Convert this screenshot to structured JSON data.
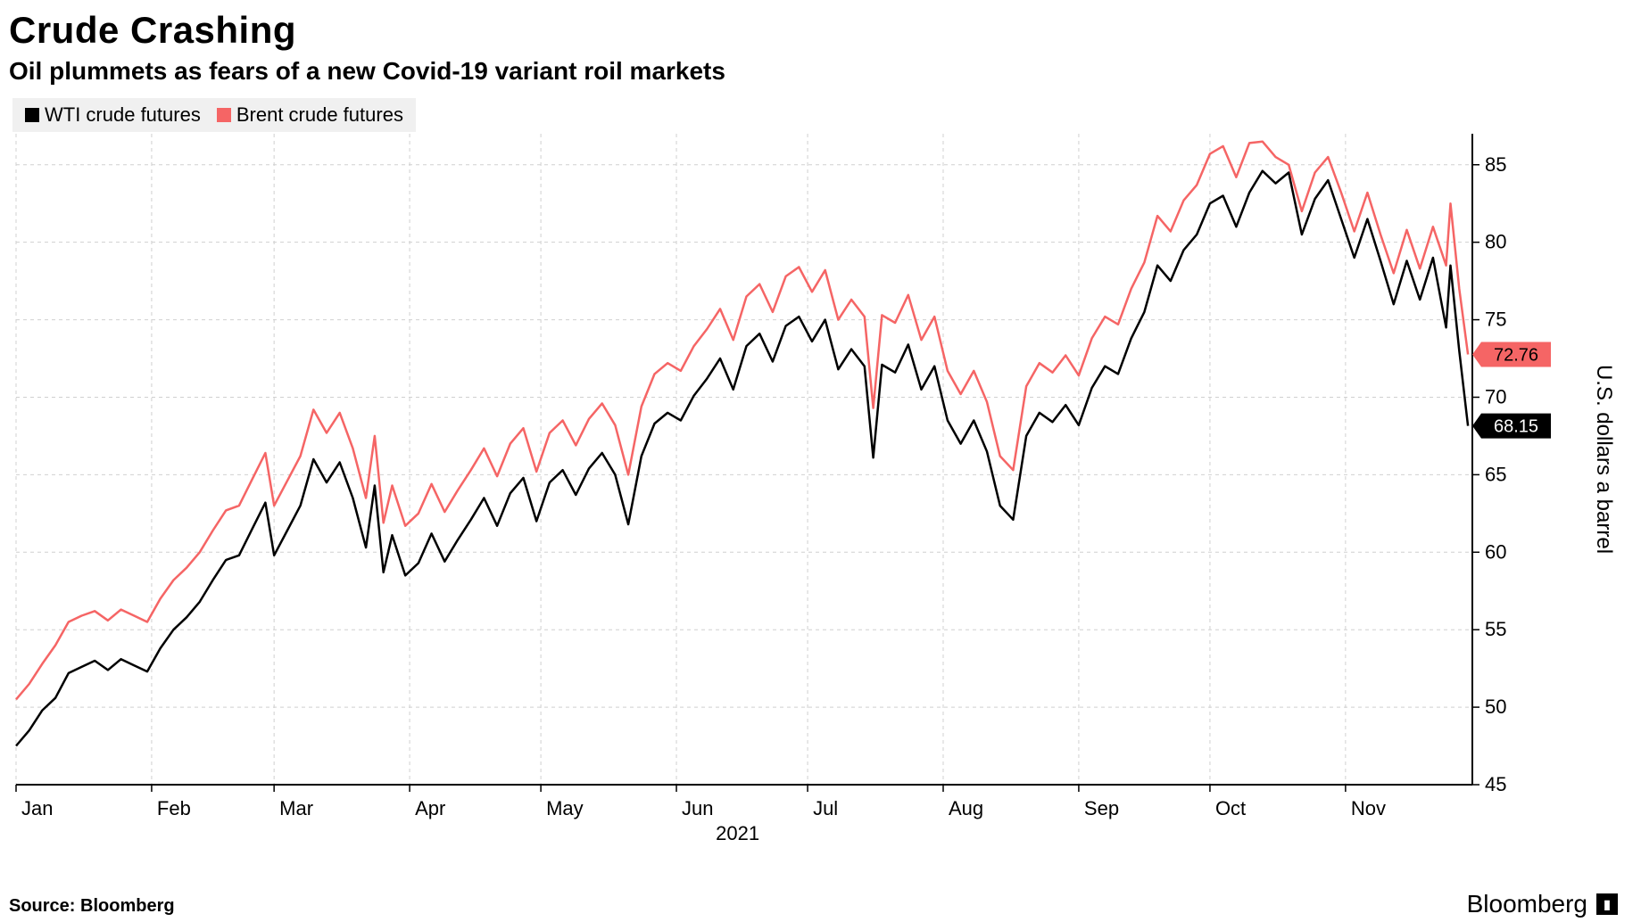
{
  "title": "Crude Crashing",
  "subtitle": "Oil plummets as fears of a new Covid-19 variant roil markets",
  "source": "Source: Bloomberg",
  "brand": "Bloomberg",
  "chart": {
    "type": "line",
    "background_color": "#ffffff",
    "grid_color": "#d0d0d0",
    "grid_dash": "4 4",
    "axis_color": "#000000",
    "title_fontsize": 42,
    "subtitle_fontsize": 28,
    "label_fontsize": 22,
    "ylabel_fontsize": 24,
    "line_width": 2.5,
    "x": {
      "months": [
        "Jan",
        "Feb",
        "Mar",
        "Apr",
        "May",
        "Jun",
        "Jul",
        "Aug",
        "Sep",
        "Oct",
        "Nov"
      ],
      "year_label": "2021",
      "domain_days": 333
    },
    "y": {
      "label": "U.S. dollars a barrel",
      "min": 45,
      "max": 87,
      "ticks": [
        45,
        50,
        55,
        60,
        65,
        70,
        75,
        80,
        85
      ]
    },
    "series": [
      {
        "name": "WTI crude futures",
        "color": "#000000",
        "tag_bg": "#000000",
        "tag_fg": "#ffffff",
        "last_value": 68.15,
        "last_label": "68.15",
        "data": [
          [
            0,
            47.5
          ],
          [
            3,
            48.5
          ],
          [
            6,
            49.8
          ],
          [
            9,
            50.6
          ],
          [
            12,
            52.2
          ],
          [
            15,
            52.6
          ],
          [
            18,
            53.0
          ],
          [
            21,
            52.4
          ],
          [
            24,
            53.1
          ],
          [
            27,
            52.7
          ],
          [
            30,
            52.3
          ],
          [
            33,
            53.8
          ],
          [
            36,
            55.0
          ],
          [
            39,
            55.8
          ],
          [
            42,
            56.8
          ],
          [
            45,
            58.2
          ],
          [
            48,
            59.5
          ],
          [
            51,
            59.8
          ],
          [
            54,
            61.5
          ],
          [
            57,
            63.2
          ],
          [
            59,
            59.8
          ],
          [
            62,
            61.4
          ],
          [
            65,
            63.0
          ],
          [
            68,
            66.0
          ],
          [
            71,
            64.5
          ],
          [
            74,
            65.8
          ],
          [
            77,
            63.5
          ],
          [
            80,
            60.3
          ],
          [
            82,
            64.3
          ],
          [
            84,
            58.7
          ],
          [
            86,
            61.1
          ],
          [
            89,
            58.5
          ],
          [
            92,
            59.3
          ],
          [
            95,
            61.2
          ],
          [
            98,
            59.4
          ],
          [
            101,
            60.8
          ],
          [
            104,
            62.1
          ],
          [
            107,
            63.5
          ],
          [
            110,
            61.7
          ],
          [
            113,
            63.8
          ],
          [
            116,
            64.8
          ],
          [
            119,
            62.0
          ],
          [
            122,
            64.5
          ],
          [
            125,
            65.3
          ],
          [
            128,
            63.7
          ],
          [
            131,
            65.4
          ],
          [
            134,
            66.4
          ],
          [
            137,
            65.0
          ],
          [
            140,
            61.8
          ],
          [
            143,
            66.2
          ],
          [
            146,
            68.3
          ],
          [
            149,
            69.0
          ],
          [
            152,
            68.5
          ],
          [
            155,
            70.1
          ],
          [
            158,
            71.2
          ],
          [
            161,
            72.5
          ],
          [
            164,
            70.5
          ],
          [
            167,
            73.3
          ],
          [
            170,
            74.1
          ],
          [
            173,
            72.3
          ],
          [
            176,
            74.6
          ],
          [
            179,
            75.2
          ],
          [
            182,
            73.6
          ],
          [
            185,
            75.0
          ],
          [
            188,
            71.8
          ],
          [
            191,
            73.1
          ],
          [
            194,
            72.0
          ],
          [
            196,
            66.1
          ],
          [
            198,
            72.1
          ],
          [
            201,
            71.6
          ],
          [
            204,
            73.4
          ],
          [
            207,
            70.5
          ],
          [
            210,
            72.0
          ],
          [
            213,
            68.5
          ],
          [
            216,
            67.0
          ],
          [
            219,
            68.5
          ],
          [
            222,
            66.5
          ],
          [
            225,
            63.0
          ],
          [
            228,
            62.1
          ],
          [
            231,
            67.5
          ],
          [
            234,
            69.0
          ],
          [
            237,
            68.4
          ],
          [
            240,
            69.5
          ],
          [
            243,
            68.2
          ],
          [
            246,
            70.6
          ],
          [
            249,
            72.0
          ],
          [
            252,
            71.5
          ],
          [
            255,
            73.8
          ],
          [
            258,
            75.5
          ],
          [
            261,
            78.5
          ],
          [
            264,
            77.5
          ],
          [
            267,
            79.5
          ],
          [
            270,
            80.5
          ],
          [
            273,
            82.5
          ],
          [
            276,
            83.0
          ],
          [
            279,
            81.0
          ],
          [
            282,
            83.2
          ],
          [
            285,
            84.6
          ],
          [
            288,
            83.8
          ],
          [
            291,
            84.5
          ],
          [
            294,
            80.5
          ],
          [
            297,
            82.8
          ],
          [
            300,
            84.0
          ],
          [
            303,
            81.5
          ],
          [
            306,
            79.0
          ],
          [
            309,
            81.5
          ],
          [
            312,
            78.8
          ],
          [
            315,
            76.0
          ],
          [
            318,
            78.8
          ],
          [
            321,
            76.3
          ],
          [
            324,
            79.0
          ],
          [
            327,
            74.5
          ],
          [
            328,
            78.5
          ],
          [
            330,
            73.0
          ],
          [
            332,
            68.15
          ]
        ]
      },
      {
        "name": "Brent crude futures",
        "color": "#f56565",
        "tag_bg": "#f56565",
        "tag_fg": "#000000",
        "last_value": 72.76,
        "last_label": "72.76",
        "data": [
          [
            0,
            50.5
          ],
          [
            3,
            51.5
          ],
          [
            6,
            52.8
          ],
          [
            9,
            54.0
          ],
          [
            12,
            55.5
          ],
          [
            15,
            55.9
          ],
          [
            18,
            56.2
          ],
          [
            21,
            55.6
          ],
          [
            24,
            56.3
          ],
          [
            27,
            55.9
          ],
          [
            30,
            55.5
          ],
          [
            33,
            57.0
          ],
          [
            36,
            58.2
          ],
          [
            39,
            59.0
          ],
          [
            42,
            60.0
          ],
          [
            45,
            61.4
          ],
          [
            48,
            62.7
          ],
          [
            51,
            63.0
          ],
          [
            54,
            64.7
          ],
          [
            57,
            66.4
          ],
          [
            59,
            63.0
          ],
          [
            62,
            64.6
          ],
          [
            65,
            66.2
          ],
          [
            68,
            69.2
          ],
          [
            71,
            67.7
          ],
          [
            74,
            69.0
          ],
          [
            77,
            66.7
          ],
          [
            80,
            63.5
          ],
          [
            82,
            67.5
          ],
          [
            84,
            61.9
          ],
          [
            86,
            64.3
          ],
          [
            89,
            61.7
          ],
          [
            92,
            62.5
          ],
          [
            95,
            64.4
          ],
          [
            98,
            62.6
          ],
          [
            101,
            64.0
          ],
          [
            104,
            65.3
          ],
          [
            107,
            66.7
          ],
          [
            110,
            64.9
          ],
          [
            113,
            67.0
          ],
          [
            116,
            68.0
          ],
          [
            119,
            65.2
          ],
          [
            122,
            67.7
          ],
          [
            125,
            68.5
          ],
          [
            128,
            66.9
          ],
          [
            131,
            68.6
          ],
          [
            134,
            69.6
          ],
          [
            137,
            68.2
          ],
          [
            140,
            65.0
          ],
          [
            143,
            69.4
          ],
          [
            146,
            71.5
          ],
          [
            149,
            72.2
          ],
          [
            152,
            71.7
          ],
          [
            155,
            73.3
          ],
          [
            158,
            74.4
          ],
          [
            161,
            75.7
          ],
          [
            164,
            73.7
          ],
          [
            167,
            76.5
          ],
          [
            170,
            77.3
          ],
          [
            173,
            75.5
          ],
          [
            176,
            77.8
          ],
          [
            179,
            78.4
          ],
          [
            182,
            76.8
          ],
          [
            185,
            78.2
          ],
          [
            188,
            75.0
          ],
          [
            191,
            76.3
          ],
          [
            194,
            75.2
          ],
          [
            196,
            69.3
          ],
          [
            198,
            75.3
          ],
          [
            201,
            74.8
          ],
          [
            204,
            76.6
          ],
          [
            207,
            73.7
          ],
          [
            210,
            75.2
          ],
          [
            213,
            71.7
          ],
          [
            216,
            70.2
          ],
          [
            219,
            71.7
          ],
          [
            222,
            69.7
          ],
          [
            225,
            66.2
          ],
          [
            228,
            65.3
          ],
          [
            231,
            70.7
          ],
          [
            234,
            72.2
          ],
          [
            237,
            71.6
          ],
          [
            240,
            72.7
          ],
          [
            243,
            71.4
          ],
          [
            246,
            73.8
          ],
          [
            249,
            75.2
          ],
          [
            252,
            74.7
          ],
          [
            255,
            77.0
          ],
          [
            258,
            78.7
          ],
          [
            261,
            81.7
          ],
          [
            264,
            80.7
          ],
          [
            267,
            82.7
          ],
          [
            270,
            83.7
          ],
          [
            273,
            85.7
          ],
          [
            276,
            86.2
          ],
          [
            279,
            84.2
          ],
          [
            282,
            86.4
          ],
          [
            285,
            86.5
          ],
          [
            288,
            85.5
          ],
          [
            291,
            85.0
          ],
          [
            294,
            82.0
          ],
          [
            297,
            84.5
          ],
          [
            300,
            85.5
          ],
          [
            303,
            83.2
          ],
          [
            306,
            80.7
          ],
          [
            309,
            83.2
          ],
          [
            312,
            80.5
          ],
          [
            315,
            78.0
          ],
          [
            318,
            80.8
          ],
          [
            321,
            78.3
          ],
          [
            324,
            81.0
          ],
          [
            327,
            78.5
          ],
          [
            328,
            82.5
          ],
          [
            330,
            77.0
          ],
          [
            332,
            72.76
          ]
        ]
      }
    ],
    "legend": {
      "items": [
        {
          "label": "WTI crude futures",
          "color": "#000000"
        },
        {
          "label": "Brent crude futures",
          "color": "#f56565"
        }
      ]
    }
  }
}
